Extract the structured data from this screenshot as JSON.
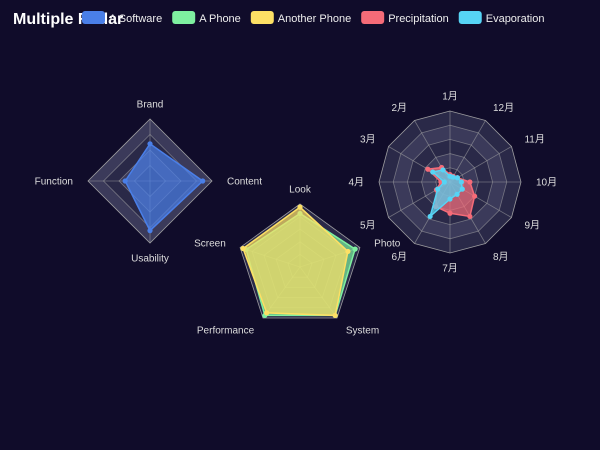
{
  "title": "Multiple Radar",
  "colors": {
    "background": "#100c2a",
    "grid_fill_a": "#2a2948",
    "grid_fill_b": "#3b3a5a",
    "grid_line": "#aaaaaa"
  },
  "chart_data": [
    {
      "type": "radar",
      "indicators": [
        {
          "name": "Brand",
          "max": 100
        },
        {
          "name": "Function",
          "max": 100
        },
        {
          "name": "Usability",
          "max": 100
        },
        {
          "name": "Content",
          "max": 100
        }
      ],
      "series": [
        {
          "name": "A Software",
          "color": "#4a7fe8",
          "values": [
            60,
            40,
            80,
            85
          ]
        }
      ]
    },
    {
      "type": "radar",
      "indicators": [
        {
          "name": "Look",
          "max": 100
        },
        {
          "name": "Screen",
          "max": 100
        },
        {
          "name": "Performance",
          "max": 100
        },
        {
          "name": "System",
          "max": 100
        },
        {
          "name": "Photo",
          "max": 100
        }
      ],
      "series": [
        {
          "name": "A Phone",
          "color": "#7ef0a0",
          "values": [
            85,
            90,
            95,
            95,
            92
          ]
        },
        {
          "name": "Another Phone",
          "color": "#fde065",
          "values": [
            95,
            95,
            90,
            95,
            80
          ]
        }
      ]
    },
    {
      "type": "radar",
      "indicators": [
        {
          "name": "1月",
          "max": 25
        },
        {
          "name": "2月",
          "max": 25
        },
        {
          "name": "3月",
          "max": 25
        },
        {
          "name": "4月",
          "max": 25
        },
        {
          "name": "5月",
          "max": 25
        },
        {
          "name": "6月",
          "max": 25
        },
        {
          "name": "7月",
          "max": 25
        },
        {
          "name": "8月",
          "max": 25
        },
        {
          "name": "9月",
          "max": 25
        },
        {
          "name": "10月",
          "max": 25
        },
        {
          "name": "11月",
          "max": 25
        },
        {
          "name": "12月",
          "max": 25
        }
      ],
      "series": [
        {
          "name": "Precipitation",
          "color": "#f56b78",
          "values": [
            2.6,
            5.9,
            9.0,
            3.2,
            5.5,
            10.0,
            11.0,
            14.0,
            10.0,
            7.0,
            3.0,
            2.3
          ]
        },
        {
          "name": "Evaporation",
          "color": "#56d4f5",
          "values": [
            2.0,
            4.9,
            7.0,
            2.0,
            5.0,
            14.0,
            6.0,
            5.0,
            5.0,
            4.0,
            3.0,
            2.0
          ]
        }
      ]
    }
  ]
}
